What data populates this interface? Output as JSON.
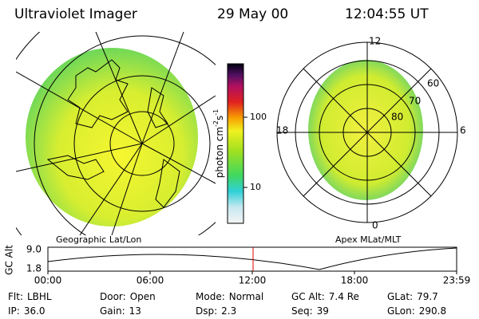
{
  "header": {
    "instrument": "Ultraviolet Imager",
    "date": "29 May 00",
    "time": "12:04:55 UT"
  },
  "left_panel": {
    "caption": "Geographic Lat/Lon"
  },
  "colorbar": {
    "unit": {
      "base": "photon cm",
      "exp1": "-2",
      "mid": "s",
      "exp2": "-1"
    },
    "ticks": [
      "100",
      "10"
    ]
  },
  "right_panel": {
    "caption": "Apex MLat/MLT",
    "mlt_labels": [
      "12",
      "18",
      "6",
      "0"
    ],
    "mlat_labels": [
      "60",
      "70",
      "80"
    ]
  },
  "timeline": {
    "axis_label": "GC Alt",
    "y_ticks": [
      "9.0",
      "1.8"
    ],
    "x_ticks": [
      "00:00",
      "06:00",
      "12:00",
      "18:00",
      "23:59"
    ]
  },
  "footer": {
    "rows": [
      [
        {
          "label": "Flt:",
          "value": "LBHL"
        },
        {
          "label": "Door:",
          "value": "Open"
        },
        {
          "label": "Mode:",
          "value": "Normal"
        },
        {
          "label": "GC Alt:",
          "value": "7.4 Re"
        },
        {
          "label": "GLat:",
          "value": "79.7"
        }
      ],
      [
        {
          "label": "IP:",
          "value": "36.0"
        },
        {
          "label": "Gain:",
          "value": "13"
        },
        {
          "label": "Dsp:",
          "value": "2.3"
        },
        {
          "label": "Seq:",
          "value": "39"
        },
        {
          "label": "GLon:",
          "value": "290.8"
        }
      ]
    ]
  }
}
